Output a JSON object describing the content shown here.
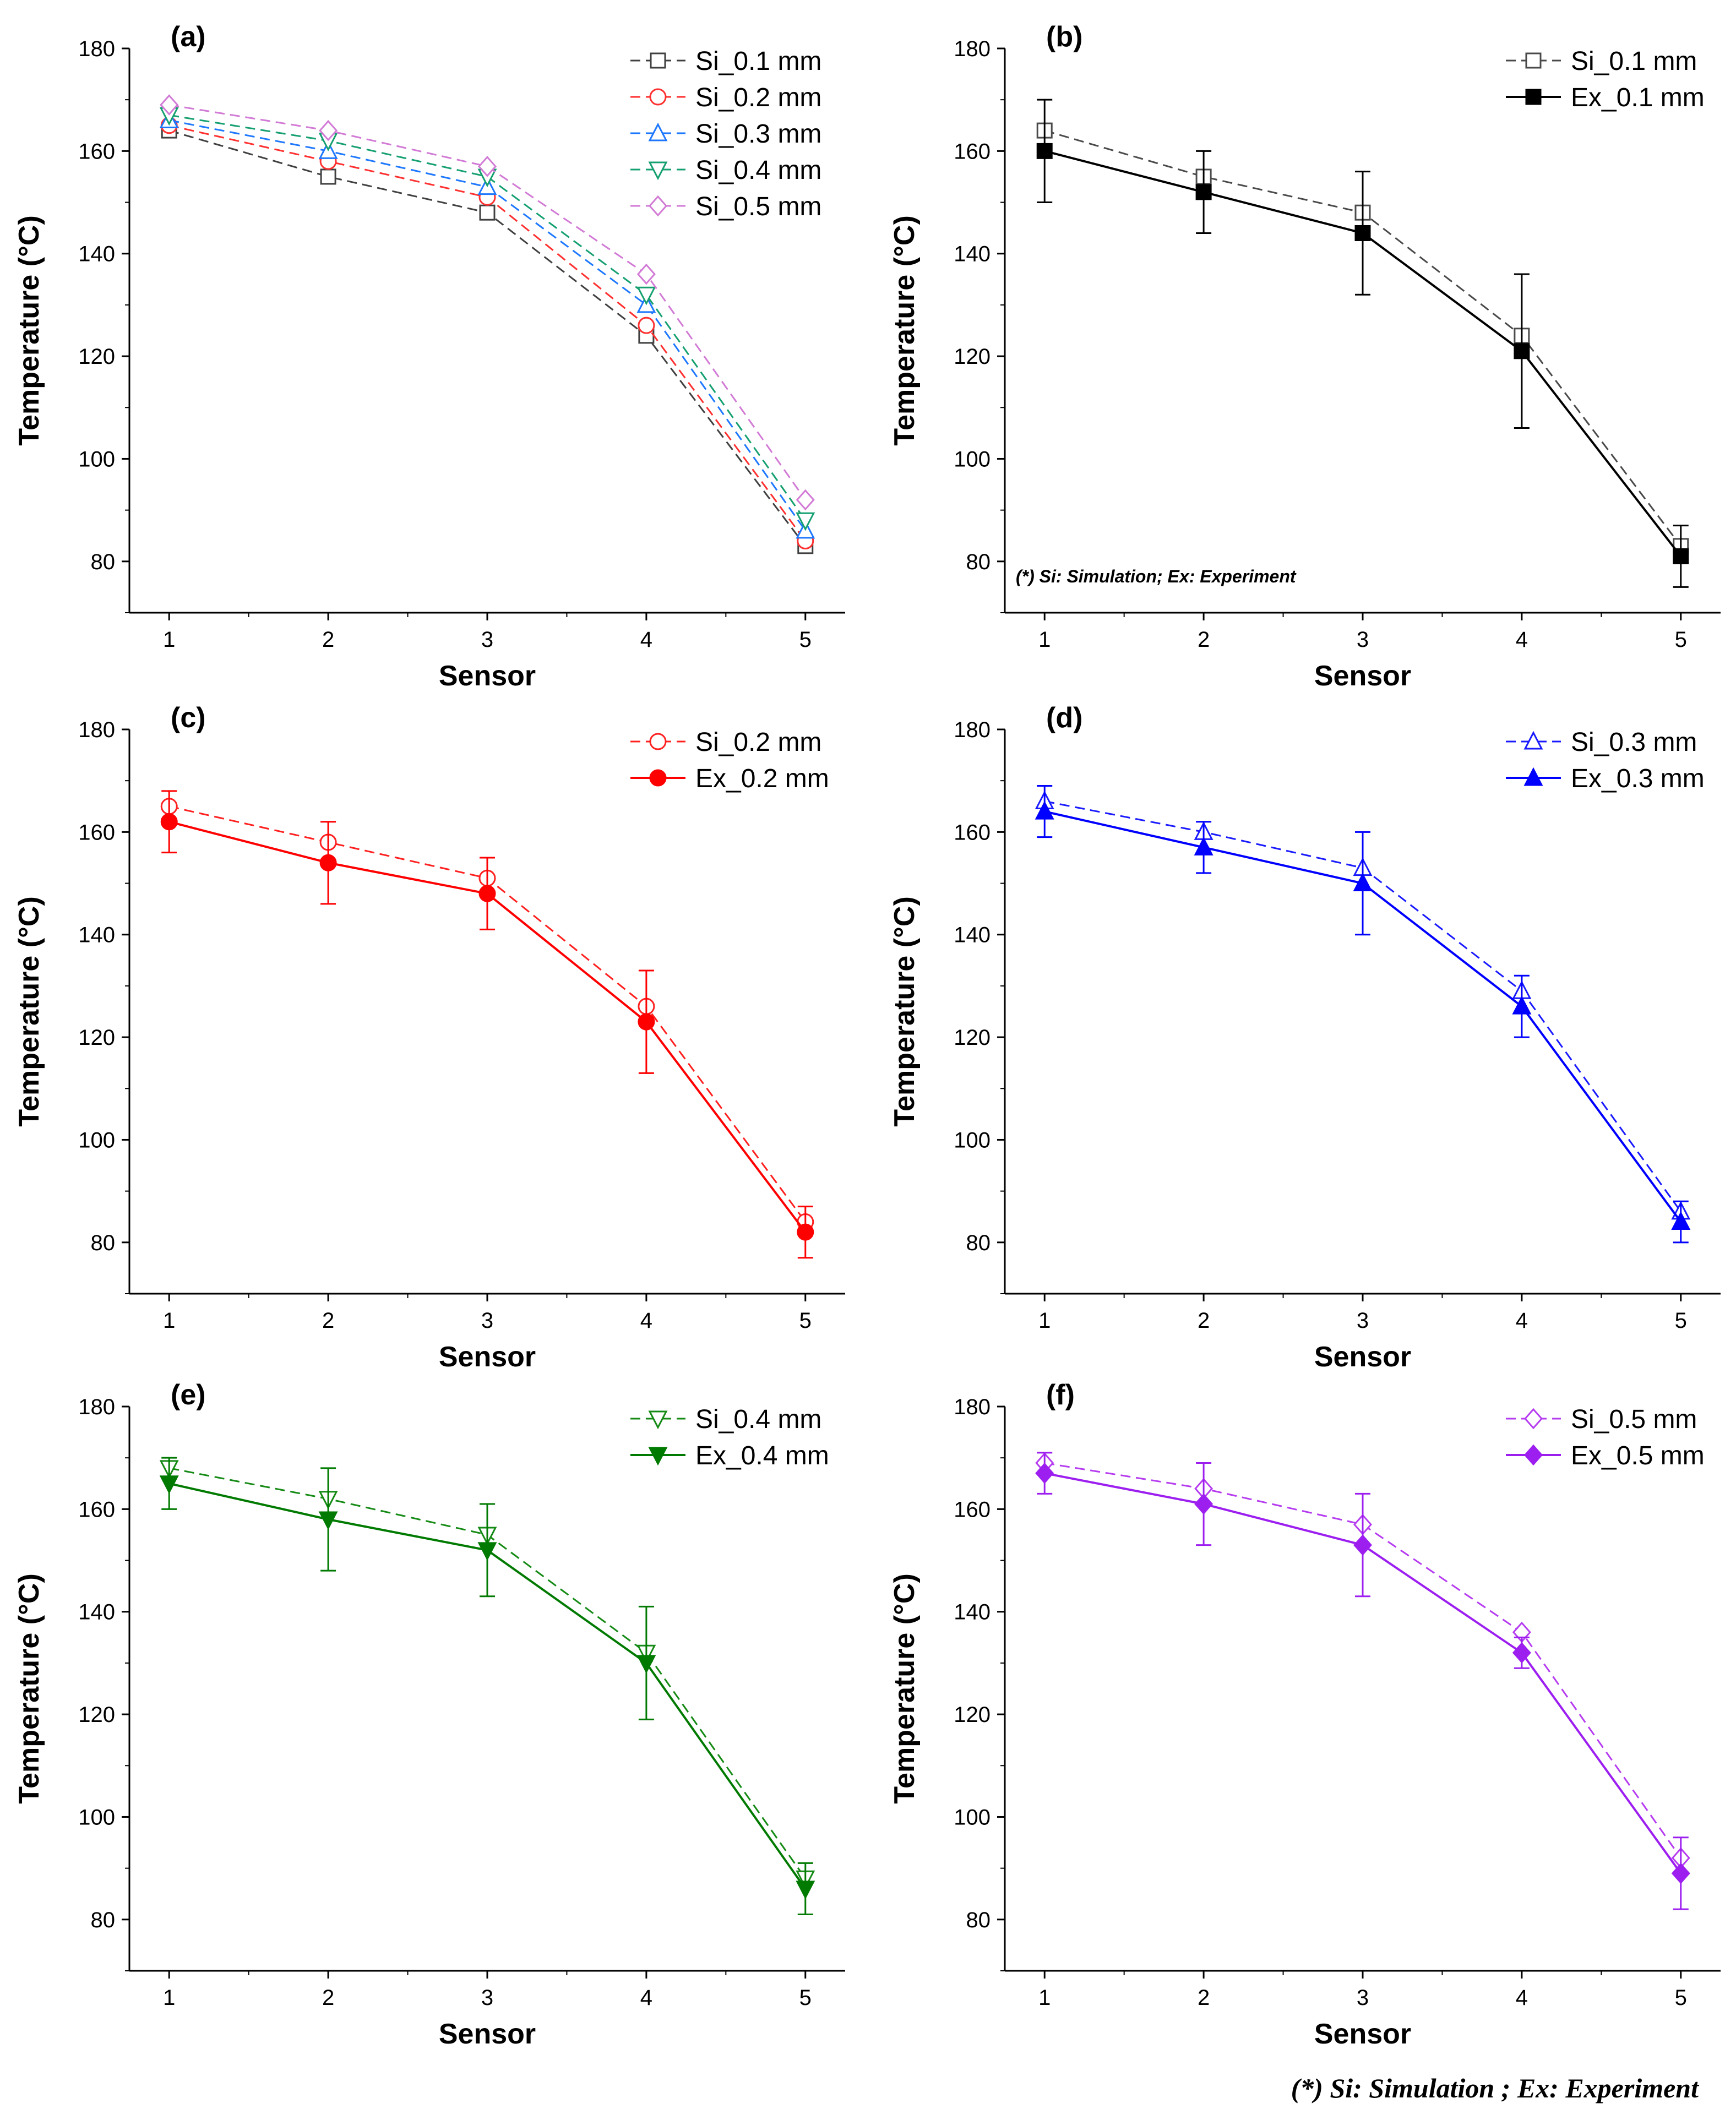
{
  "figure_note": "(*) Si: Simulation ; Ex: Experiment",
  "chart_data": [
    {
      "id": "a",
      "type": "line",
      "panel_label": "(a)",
      "xlabel": "Sensor",
      "ylabel": "Temperature (°C)",
      "x": [
        1,
        2,
        3,
        4,
        5
      ],
      "xlim": [
        0.75,
        5.25
      ],
      "ylim": [
        70,
        180
      ],
      "yticks": [
        80,
        100,
        120,
        140,
        160,
        180
      ],
      "legend": "top-right",
      "series": [
        {
          "name": "Si_0.1 mm",
          "values": [
            164,
            155,
            148,
            124,
            83
          ],
          "color": "#404040",
          "marker": "square",
          "filled": false,
          "dashed": true
        },
        {
          "name": "Si_0.2 mm",
          "values": [
            165,
            158,
            151,
            126,
            84
          ],
          "color": "#ff3030",
          "marker": "circle",
          "filled": false,
          "dashed": true
        },
        {
          "name": "Si_0.3 mm",
          "values": [
            166,
            160,
            153,
            130,
            86
          ],
          "color": "#1e78ff",
          "marker": "triangle-up",
          "filled": false,
          "dashed": true
        },
        {
          "name": "Si_0.4 mm",
          "values": [
            167,
            162,
            155,
            132,
            88
          ],
          "color": "#16a070",
          "marker": "triangle-down",
          "filled": false,
          "dashed": true
        },
        {
          "name": "Si_0.5 mm",
          "values": [
            169,
            164,
            157,
            136,
            92
          ],
          "color": "#d27ad6",
          "marker": "diamond",
          "filled": false,
          "dashed": true
        }
      ]
    },
    {
      "id": "b",
      "type": "line",
      "panel_label": "(b)",
      "xlabel": "Sensor",
      "ylabel": "Temperature (°C)",
      "x": [
        1,
        2,
        3,
        4,
        5
      ],
      "xlim": [
        0.75,
        5.25
      ],
      "ylim": [
        70,
        180
      ],
      "yticks": [
        80,
        100,
        120,
        140,
        160,
        180
      ],
      "legend": "top-right",
      "annotation": "(*) Si: Simulation; Ex: Experiment",
      "series": [
        {
          "name": "Si_0.1 mm",
          "values": [
            164,
            155,
            148,
            124,
            83
          ],
          "color": "#4a4a4a",
          "marker": "square",
          "filled": false,
          "dashed": true
        },
        {
          "name": "Ex_0.1 mm",
          "values": [
            160,
            152,
            144,
            121,
            81
          ],
          "color": "#000000",
          "marker": "square",
          "filled": true,
          "dashed": false,
          "err_low": [
            150,
            144,
            132,
            106,
            75
          ],
          "err_high": [
            170,
            160,
            156,
            136,
            87
          ]
        }
      ]
    },
    {
      "id": "c",
      "type": "line",
      "panel_label": "(c)",
      "xlabel": "Sensor",
      "ylabel": "Temperature (°C)",
      "x": [
        1,
        2,
        3,
        4,
        5
      ],
      "xlim": [
        0.75,
        5.25
      ],
      "ylim": [
        70,
        180
      ],
      "yticks": [
        80,
        100,
        120,
        140,
        160,
        180
      ],
      "legend": "top-right",
      "series": [
        {
          "name": "Si_0.2 mm",
          "values": [
            165,
            158,
            151,
            126,
            84
          ],
          "color": "#ff2020",
          "marker": "circle",
          "filled": false,
          "dashed": true
        },
        {
          "name": "Ex_0.2 mm",
          "values": [
            162,
            154,
            148,
            123,
            82
          ],
          "color": "#ff0000",
          "marker": "circle",
          "filled": true,
          "dashed": false,
          "err_low": [
            156,
            146,
            141,
            113,
            77
          ],
          "err_high": [
            168,
            162,
            155,
            133,
            87
          ]
        }
      ]
    },
    {
      "id": "d",
      "type": "line",
      "panel_label": "(d)",
      "xlabel": "Sensor",
      "ylabel": "Temperature (°C)",
      "x": [
        1,
        2,
        3,
        4,
        5
      ],
      "xlim": [
        0.75,
        5.25
      ],
      "ylim": [
        70,
        180
      ],
      "yticks": [
        80,
        100,
        120,
        140,
        160,
        180
      ],
      "legend": "top-right",
      "series": [
        {
          "name": "Si_0.3 mm",
          "values": [
            166,
            160,
            153,
            129,
            86
          ],
          "color": "#1a1aff",
          "marker": "triangle-up",
          "filled": false,
          "dashed": true
        },
        {
          "name": "Ex_0.3 mm",
          "values": [
            164,
            157,
            150,
            126,
            84
          ],
          "color": "#0000ff",
          "marker": "triangle-up",
          "filled": true,
          "dashed": false,
          "err_low": [
            159,
            152,
            140,
            120,
            80
          ],
          "err_high": [
            169,
            162,
            160,
            132,
            88
          ]
        }
      ]
    },
    {
      "id": "e",
      "type": "line",
      "panel_label": "(e)",
      "xlabel": "Sensor",
      "ylabel": "Temperature (°C)",
      "x": [
        1,
        2,
        3,
        4,
        5
      ],
      "xlim": [
        0.75,
        5.25
      ],
      "ylim": [
        70,
        180
      ],
      "yticks": [
        80,
        100,
        120,
        140,
        160,
        180
      ],
      "legend": "top-right",
      "series": [
        {
          "name": "Si_0.4 mm",
          "values": [
            168,
            162,
            155,
            132,
            88
          ],
          "color": "#158a15",
          "marker": "triangle-down",
          "filled": false,
          "dashed": true
        },
        {
          "name": "Ex_0.4 mm",
          "values": [
            165,
            158,
            152,
            130,
            86
          ],
          "color": "#007a00",
          "marker": "triangle-down",
          "filled": true,
          "dashed": false,
          "err_low": [
            160,
            148,
            143,
            119,
            81
          ],
          "err_high": [
            170,
            168,
            161,
            141,
            91
          ]
        }
      ]
    },
    {
      "id": "f",
      "type": "line",
      "panel_label": "(f)",
      "xlabel": "Sensor",
      "ylabel": "Temperature (°C)",
      "x": [
        1,
        2,
        3,
        4,
        5
      ],
      "xlim": [
        0.75,
        5.25
      ],
      "ylim": [
        70,
        180
      ],
      "yticks": [
        80,
        100,
        120,
        140,
        160,
        180
      ],
      "legend": "top-right",
      "series": [
        {
          "name": "Si_0.5 mm",
          "values": [
            169,
            164,
            157,
            136,
            92
          ],
          "color": "#b63cf0",
          "marker": "diamond",
          "filled": false,
          "dashed": true
        },
        {
          "name": "Ex_0.5 mm",
          "values": [
            167,
            161,
            153,
            132,
            89
          ],
          "color": "#9d1ff0",
          "marker": "diamond",
          "filled": true,
          "dashed": false,
          "err_low": [
            163,
            153,
            143,
            129,
            82
          ],
          "err_high": [
            171,
            169,
            163,
            135,
            96
          ]
        }
      ]
    }
  ]
}
